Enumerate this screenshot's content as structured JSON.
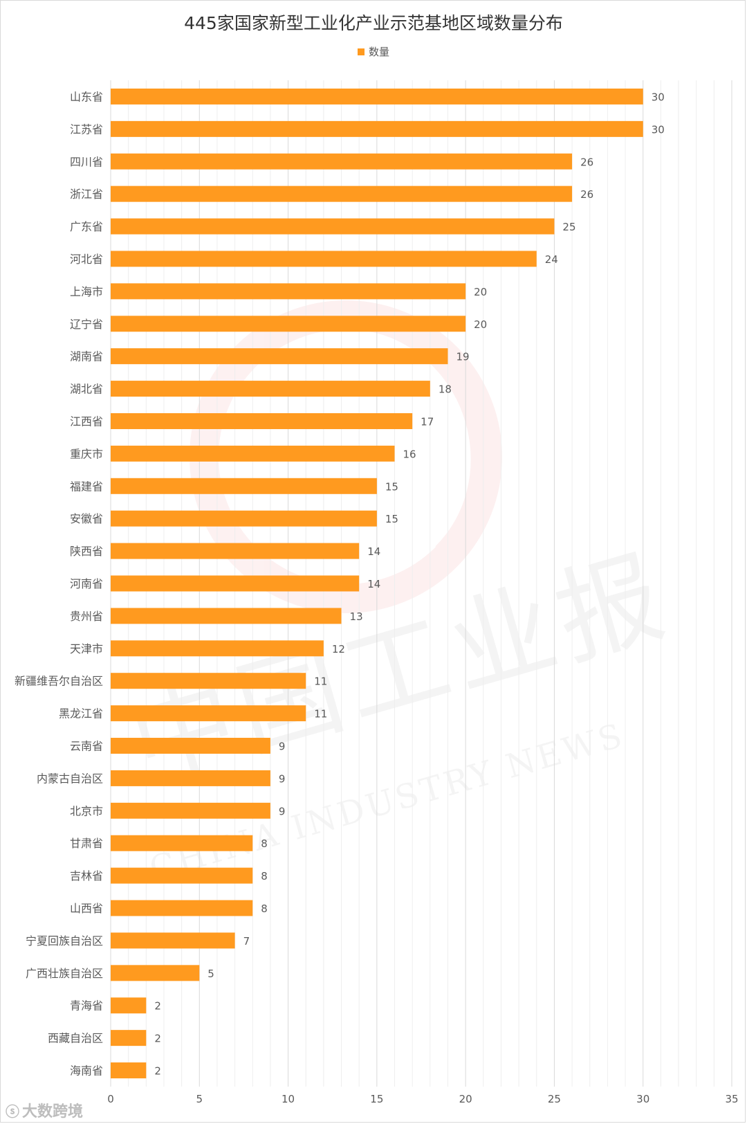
{
  "chart_data": {
    "type": "bar",
    "orientation": "horizontal",
    "title": "445家国家新型工业化产业示范基地区域数量分布",
    "legend": [
      "数量"
    ],
    "legend_position": "top",
    "series": [
      {
        "name": "数量",
        "color": "#ff9a1f",
        "values": [
          30,
          30,
          26,
          26,
          25,
          24,
          20,
          20,
          19,
          18,
          17,
          16,
          15,
          15,
          14,
          14,
          13,
          12,
          11,
          11,
          9,
          9,
          9,
          8,
          8,
          8,
          7,
          5,
          2,
          2,
          2
        ]
      }
    ],
    "categories": [
      "山东省",
      "江苏省",
      "四川省",
      "浙江省",
      "广东省",
      "河北省",
      "上海市",
      "辽宁省",
      "湖南省",
      "湖北省",
      "江西省",
      "重庆市",
      "福建省",
      "安徽省",
      "陕西省",
      "河南省",
      "贵州省",
      "天津市",
      "新疆维吾尔自治区",
      "黑龙江省",
      "云南省",
      "内蒙古自治区",
      "北京市",
      "甘肃省",
      "吉林省",
      "山西省",
      "宁夏回族自治区",
      "广西壮族自治区",
      "青海省",
      "西藏自治区",
      "海南省"
    ],
    "xlim": [
      0,
      35
    ],
    "x_ticks": [
      0,
      5,
      10,
      15,
      20,
      25,
      30,
      35
    ],
    "xlabel": "",
    "ylabel": "",
    "grid": true,
    "data_labels": true
  },
  "watermark": {
    "text": "中国工业报",
    "subtext": "CHINA INDUSTRY NEWS",
    "color": "#e53935"
  },
  "source": {
    "text": "大数跨境",
    "icon": "logo-icon"
  },
  "colors": {
    "bar": "#ff9a1f",
    "grid_major": "#d9d9d9",
    "grid_minor": "#eeeeee",
    "tick_text": "#595959",
    "label_text": "#595959"
  }
}
